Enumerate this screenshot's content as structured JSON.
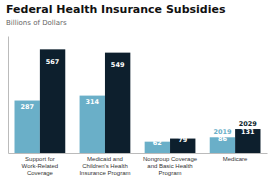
{
  "chart_data": {
    "type": "bar",
    "title": "Federal Health Insurance Subsidies",
    "y_label": "Billions of Dollars",
    "categories": [
      "Support for\nWork-Related\nCoverage",
      "Medicaid and\nChildren's Health\nInsurance Program",
      "Nongroup Coverage\nand Basic Health\nProgram",
      "Medicare"
    ],
    "series": [
      {
        "name": "2019",
        "color": "#6aafc8",
        "values": [
          287,
          314,
          62,
          86
        ]
      },
      {
        "name": "2029",
        "color": "#0d1f2d",
        "values": [
          567,
          549,
          79,
          131
        ]
      }
    ],
    "ylim": [
      0,
      640
    ],
    "data_labels": true,
    "tick_labels": "x",
    "grid": false
  }
}
